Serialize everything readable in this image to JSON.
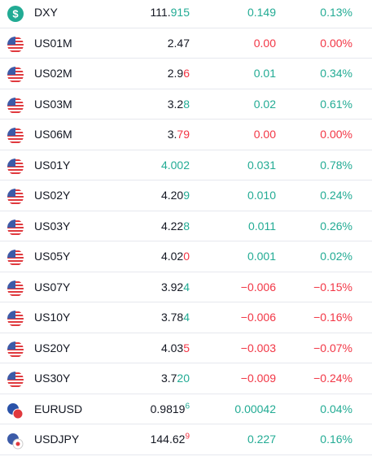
{
  "watchlist": {
    "rows": [
      {
        "icon": "dollar",
        "symbol": "DXY",
        "price": [
          {
            "text": "111.",
            "color": "#131722"
          },
          {
            "text": "915",
            "color": "#22ab94"
          }
        ],
        "change": "0.149",
        "change_pct": "0.13%",
        "change_color": "#22ab94"
      },
      {
        "icon": "us",
        "symbol": "US01M",
        "price": [
          {
            "text": "2.47",
            "color": "#131722"
          }
        ],
        "change": "0.00",
        "change_pct": "0.00%",
        "change_color": "#f23645"
      },
      {
        "icon": "us",
        "symbol": "US02M",
        "price": [
          {
            "text": "2.9",
            "color": "#131722"
          },
          {
            "text": "6",
            "color": "#f23645"
          }
        ],
        "change": "0.01",
        "change_pct": "0.34%",
        "change_color": "#22ab94"
      },
      {
        "icon": "us",
        "symbol": "US03M",
        "price": [
          {
            "text": "3.2",
            "color": "#131722"
          },
          {
            "text": "8",
            "color": "#22ab94"
          }
        ],
        "change": "0.02",
        "change_pct": "0.61%",
        "change_color": "#22ab94"
      },
      {
        "icon": "us",
        "symbol": "US06M",
        "price": [
          {
            "text": "3.",
            "color": "#131722"
          },
          {
            "text": "79",
            "color": "#f23645"
          }
        ],
        "change": "0.00",
        "change_pct": "0.00%",
        "change_color": "#f23645"
      },
      {
        "icon": "us",
        "symbol": "US01Y",
        "price": [
          {
            "text": "4.002",
            "color": "#22ab94"
          }
        ],
        "change": "0.031",
        "change_pct": "0.78%",
        "change_color": "#22ab94"
      },
      {
        "icon": "us",
        "symbol": "US02Y",
        "price": [
          {
            "text": "4.20",
            "color": "#131722"
          },
          {
            "text": "9",
            "color": "#22ab94"
          }
        ],
        "change": "0.010",
        "change_pct": "0.24%",
        "change_color": "#22ab94"
      },
      {
        "icon": "us",
        "symbol": "US03Y",
        "price": [
          {
            "text": "4.22",
            "color": "#131722"
          },
          {
            "text": "8",
            "color": "#22ab94"
          }
        ],
        "change": "0.011",
        "change_pct": "0.26%",
        "change_color": "#22ab94"
      },
      {
        "icon": "us",
        "symbol": "US05Y",
        "price": [
          {
            "text": "4.02",
            "color": "#131722"
          },
          {
            "text": "0",
            "color": "#f23645"
          }
        ],
        "change": "0.001",
        "change_pct": "0.02%",
        "change_color": "#22ab94"
      },
      {
        "icon": "us",
        "symbol": "US07Y",
        "price": [
          {
            "text": "3.92",
            "color": "#131722"
          },
          {
            "text": "4",
            "color": "#22ab94"
          }
        ],
        "change": "−0.006",
        "change_pct": "−0.15%",
        "change_color": "#f23645"
      },
      {
        "icon": "us",
        "symbol": "US10Y",
        "price": [
          {
            "text": "3.78",
            "color": "#131722"
          },
          {
            "text": "4",
            "color": "#22ab94"
          }
        ],
        "change": "−0.006",
        "change_pct": "−0.16%",
        "change_color": "#f23645"
      },
      {
        "icon": "us",
        "symbol": "US20Y",
        "price": [
          {
            "text": "4.03",
            "color": "#131722"
          },
          {
            "text": "5",
            "color": "#f23645"
          }
        ],
        "change": "−0.003",
        "change_pct": "−0.07%",
        "change_color": "#f23645"
      },
      {
        "icon": "us",
        "symbol": "US30Y",
        "price": [
          {
            "text": "3.7",
            "color": "#131722"
          },
          {
            "text": "20",
            "color": "#22ab94"
          }
        ],
        "change": "−0.009",
        "change_pct": "−0.24%",
        "change_color": "#f23645"
      },
      {
        "icon": "eu",
        "symbol": "EURUSD",
        "price": [
          {
            "text": "0.9819",
            "color": "#131722"
          },
          {
            "text": "6",
            "color": "#22ab94",
            "sup": true
          }
        ],
        "change": "0.00042",
        "change_pct": "0.04%",
        "change_color": "#22ab94"
      },
      {
        "icon": "jp",
        "symbol": "USDJPY",
        "price": [
          {
            "text": "144.62",
            "color": "#131722"
          },
          {
            "text": "9",
            "color": "#f23645",
            "sup": true
          }
        ],
        "change": "0.227",
        "change_pct": "0.16%",
        "change_color": "#22ab94"
      }
    ]
  }
}
